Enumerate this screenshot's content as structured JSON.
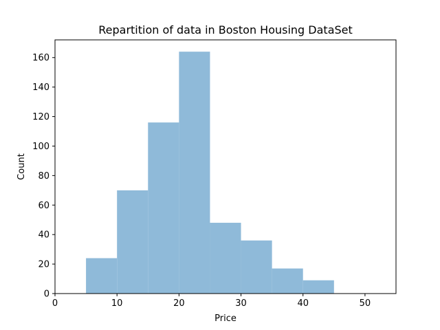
{
  "chart_data": {
    "type": "bar",
    "title": "Repartition of data in Boston Housing DataSet",
    "xlabel": "Price",
    "ylabel": "Count",
    "xlim": [
      0,
      55
    ],
    "ylim": [
      0,
      172
    ],
    "xticks": [
      0,
      10,
      20,
      30,
      40,
      50
    ],
    "yticks": [
      0,
      20,
      40,
      60,
      80,
      100,
      120,
      140,
      160
    ],
    "bins": [
      {
        "start": 5,
        "end": 10,
        "count": 24
      },
      {
        "start": 10,
        "end": 15,
        "count": 70
      },
      {
        "start": 15,
        "end": 20,
        "count": 116
      },
      {
        "start": 20,
        "end": 25,
        "count": 164
      },
      {
        "start": 25,
        "end": 30,
        "count": 48
      },
      {
        "start": 30,
        "end": 35,
        "count": 36
      },
      {
        "start": 35,
        "end": 40,
        "count": 17
      },
      {
        "start": 40,
        "end": 45,
        "count": 9
      }
    ],
    "bar_color": "#8fbad9",
    "grid": false,
    "legend": "none"
  }
}
